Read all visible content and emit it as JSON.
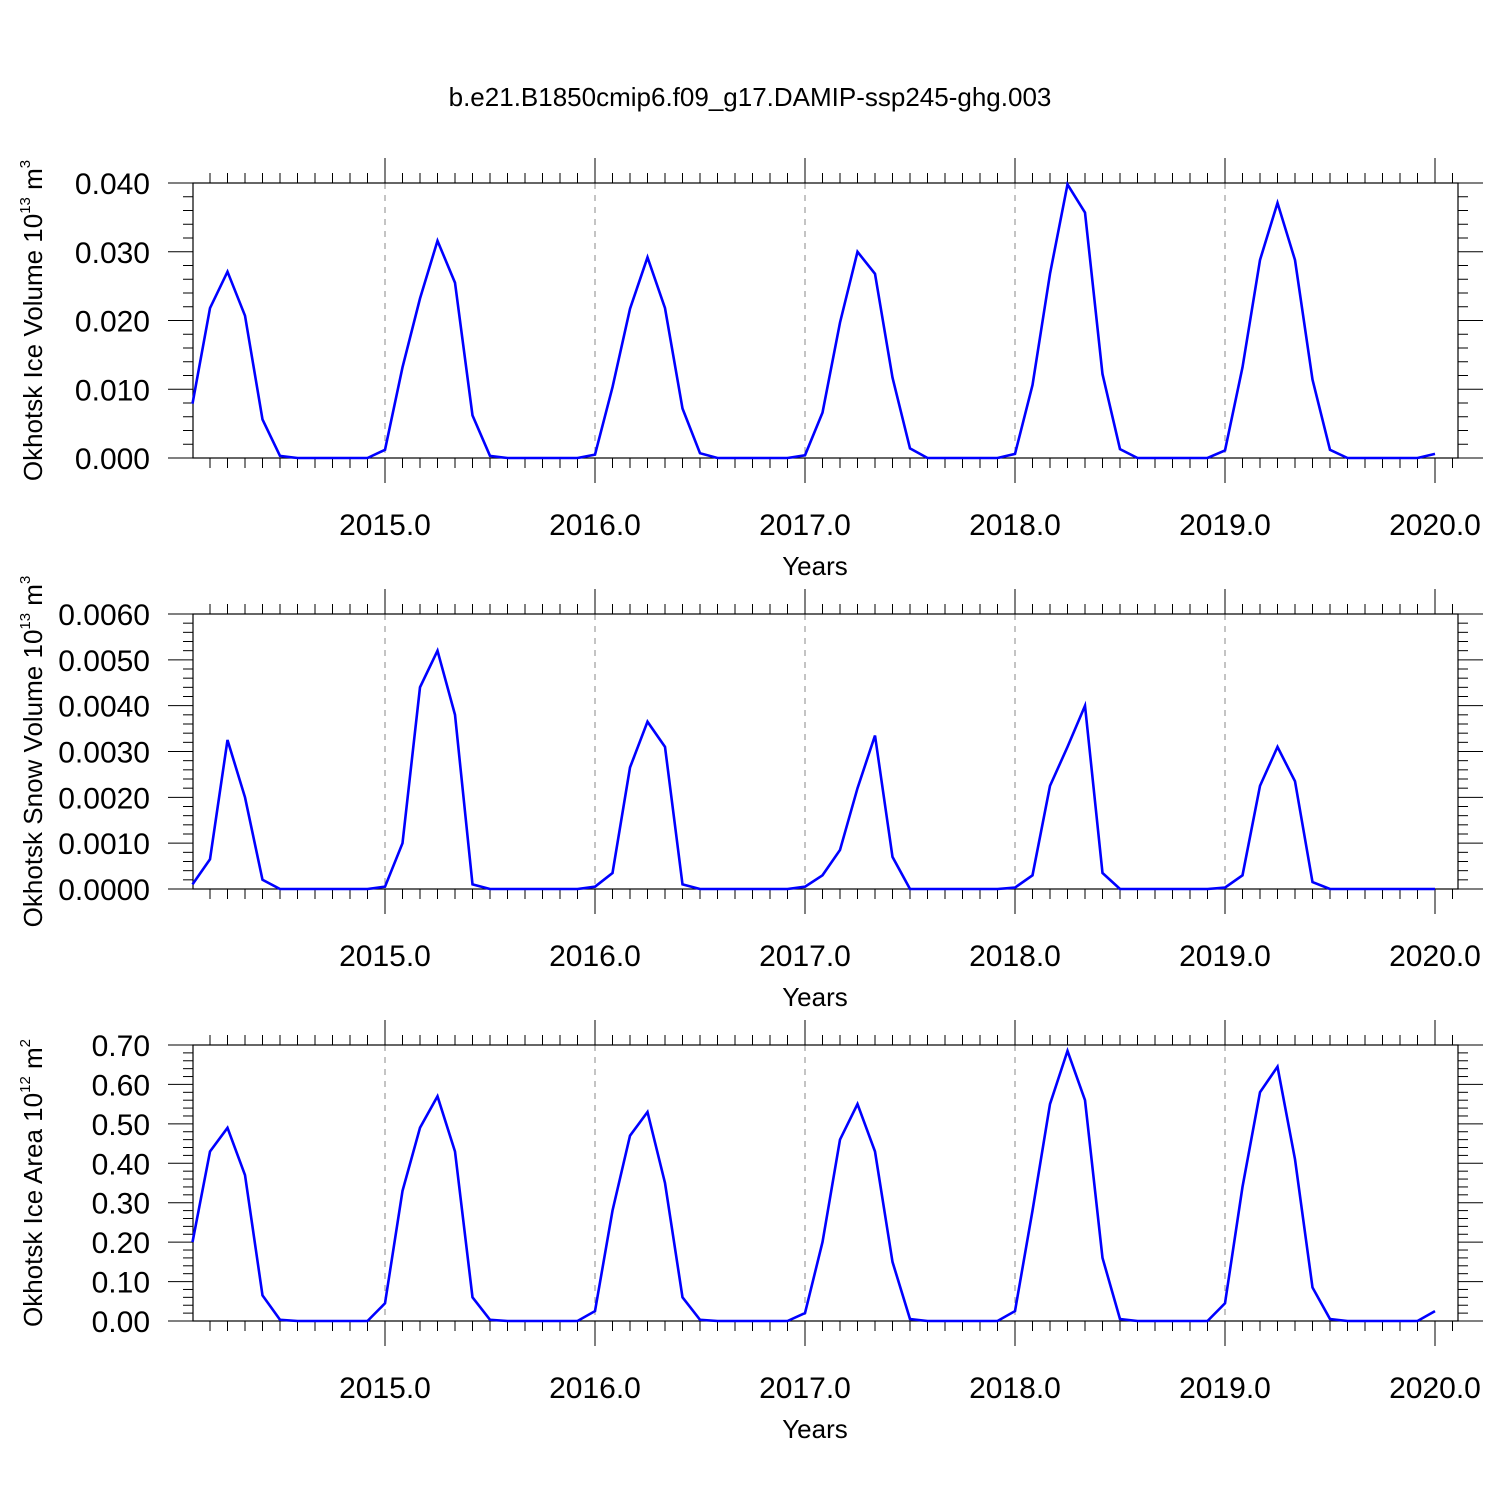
{
  "title": "b.e21.B1850cmip6.f09_g17.DAMIP-ssp245-ghg.003",
  "series_color": "#0000ff",
  "chart_data": [
    {
      "type": "line",
      "xlabel": "Years",
      "ylabel": {
        "main": "Okhotsk Ice Volume 10",
        "exp": "13",
        "unit": " m",
        "unit_exp": "3"
      },
      "xlim": [
        2014.0833,
        2020.0
      ],
      "ylim": [
        0.0,
        0.04
      ],
      "xticks": [
        2015.0,
        2016.0,
        2017.0,
        2018.0,
        2019.0,
        2020.0
      ],
      "xtick_labels": [
        "2015.0",
        "2016.0",
        "2017.0",
        "2018.0",
        "2019.0",
        "2020.0"
      ],
      "yticks": [
        0.0,
        0.01,
        0.02,
        0.03,
        0.04
      ],
      "ytick_labels": [
        "0.000",
        "0.010",
        "0.020",
        "0.030",
        "0.040"
      ],
      "grid": "dashed vertical lines at year ticks",
      "values": [
        0.0079,
        0.0218,
        0.0271,
        0.0207,
        0.0056,
        0.0003,
        0.0,
        0.0,
        0.0,
        0.0,
        0.0,
        0.0012,
        0.0132,
        0.0232,
        0.0316,
        0.0255,
        0.0062,
        0.0003,
        0.0,
        0.0,
        0.0,
        0.0,
        0.0,
        0.0005,
        0.0103,
        0.0217,
        0.0292,
        0.0218,
        0.0072,
        0.0007,
        0.0,
        0.0,
        0.0,
        0.0,
        0.0,
        0.0004,
        0.0066,
        0.0197,
        0.03,
        0.0268,
        0.0117,
        0.0014,
        0.0,
        0.0,
        0.0,
        0.0,
        0.0,
        0.0006,
        0.0106,
        0.0268,
        0.0398,
        0.0357,
        0.0122,
        0.0013,
        0.0,
        0.0,
        0.0,
        0.0,
        0.0,
        0.0011,
        0.0132,
        0.0288,
        0.0371,
        0.0288,
        0.0114,
        0.0012,
        0.0,
        0.0,
        0.0,
        0.0,
        0.0,
        0.0006
      ]
    },
    {
      "type": "line",
      "xlabel": "Years",
      "ylabel": {
        "main": "Okhotsk Snow Volume 10",
        "exp": "13",
        "unit": " m",
        "unit_exp": "3"
      },
      "xlim": [
        2014.0833,
        2020.0
      ],
      "ylim": [
        0.0,
        0.006
      ],
      "xticks": [
        2015.0,
        2016.0,
        2017.0,
        2018.0,
        2019.0,
        2020.0
      ],
      "xtick_labels": [
        "2015.0",
        "2016.0",
        "2017.0",
        "2018.0",
        "2019.0",
        "2020.0"
      ],
      "yticks": [
        0.0,
        0.001,
        0.002,
        0.003,
        0.004,
        0.005,
        0.006
      ],
      "ytick_labels": [
        "0.0000",
        "0.0010",
        "0.0020",
        "0.0030",
        "0.0040",
        "0.0050",
        "0.0060"
      ],
      "grid": "dashed vertical lines at year ticks",
      "values": [
        0.0001,
        0.00065,
        0.00325,
        0.002,
        0.0002,
        0.0,
        0.0,
        0.0,
        0.0,
        0.0,
        0.0,
        5e-05,
        0.001,
        0.0044,
        0.0052,
        0.0038,
        0.0001,
        0.0,
        0.0,
        0.0,
        0.0,
        0.0,
        0.0,
        5e-05,
        0.00035,
        0.00265,
        0.00365,
        0.0031,
        0.0001,
        0.0,
        0.0,
        0.0,
        0.0,
        0.0,
        0.0,
        5e-05,
        0.0003,
        0.00085,
        0.0022,
        0.00335,
        0.0007,
        0.0,
        0.0,
        0.0,
        0.0,
        0.0,
        0.0,
        3e-05,
        0.0003,
        0.00225,
        0.0031,
        0.004,
        0.00035,
        0.0,
        0.0,
        0.0,
        0.0,
        0.0,
        0.0,
        3e-05,
        0.0003,
        0.00225,
        0.0031,
        0.00235,
        0.00015,
        0.0,
        0.0,
        0.0,
        0.0,
        0.0,
        0.0,
        0.0
      ]
    },
    {
      "type": "line",
      "xlabel": "Years",
      "ylabel": {
        "main": "Okhotsk Ice Area 10",
        "exp": "12",
        "unit": " m",
        "unit_exp": "2"
      },
      "xlim": [
        2014.0833,
        2020.0
      ],
      "ylim": [
        0.0,
        0.7
      ],
      "xticks": [
        2015.0,
        2016.0,
        2017.0,
        2018.0,
        2019.0,
        2020.0
      ],
      "xtick_labels": [
        "2015.0",
        "2016.0",
        "2017.0",
        "2018.0",
        "2019.0",
        "2020.0"
      ],
      "yticks": [
        0.0,
        0.1,
        0.2,
        0.3,
        0.4,
        0.5,
        0.6,
        0.7
      ],
      "ytick_labels": [
        "0.00",
        "0.10",
        "0.20",
        "0.30",
        "0.40",
        "0.50",
        "0.60",
        "0.70"
      ],
      "grid": "dashed vertical lines at year ticks",
      "values": [
        0.2,
        0.43,
        0.49,
        0.37,
        0.065,
        0.003,
        0.0,
        0.0,
        0.0,
        0.0,
        0.0,
        0.045,
        0.33,
        0.49,
        0.57,
        0.43,
        0.06,
        0.003,
        0.0,
        0.0,
        0.0,
        0.0,
        0.0,
        0.025,
        0.28,
        0.47,
        0.53,
        0.35,
        0.06,
        0.003,
        0.0,
        0.0,
        0.0,
        0.0,
        0.0,
        0.02,
        0.2,
        0.46,
        0.55,
        0.43,
        0.15,
        0.005,
        0.0,
        0.0,
        0.0,
        0.0,
        0.0,
        0.025,
        0.28,
        0.55,
        0.685,
        0.56,
        0.16,
        0.005,
        0.0,
        0.0,
        0.0,
        0.0,
        0.0,
        0.045,
        0.34,
        0.58,
        0.645,
        0.41,
        0.085,
        0.005,
        0.0,
        0.0,
        0.0,
        0.0,
        0.0,
        0.025
      ]
    }
  ]
}
